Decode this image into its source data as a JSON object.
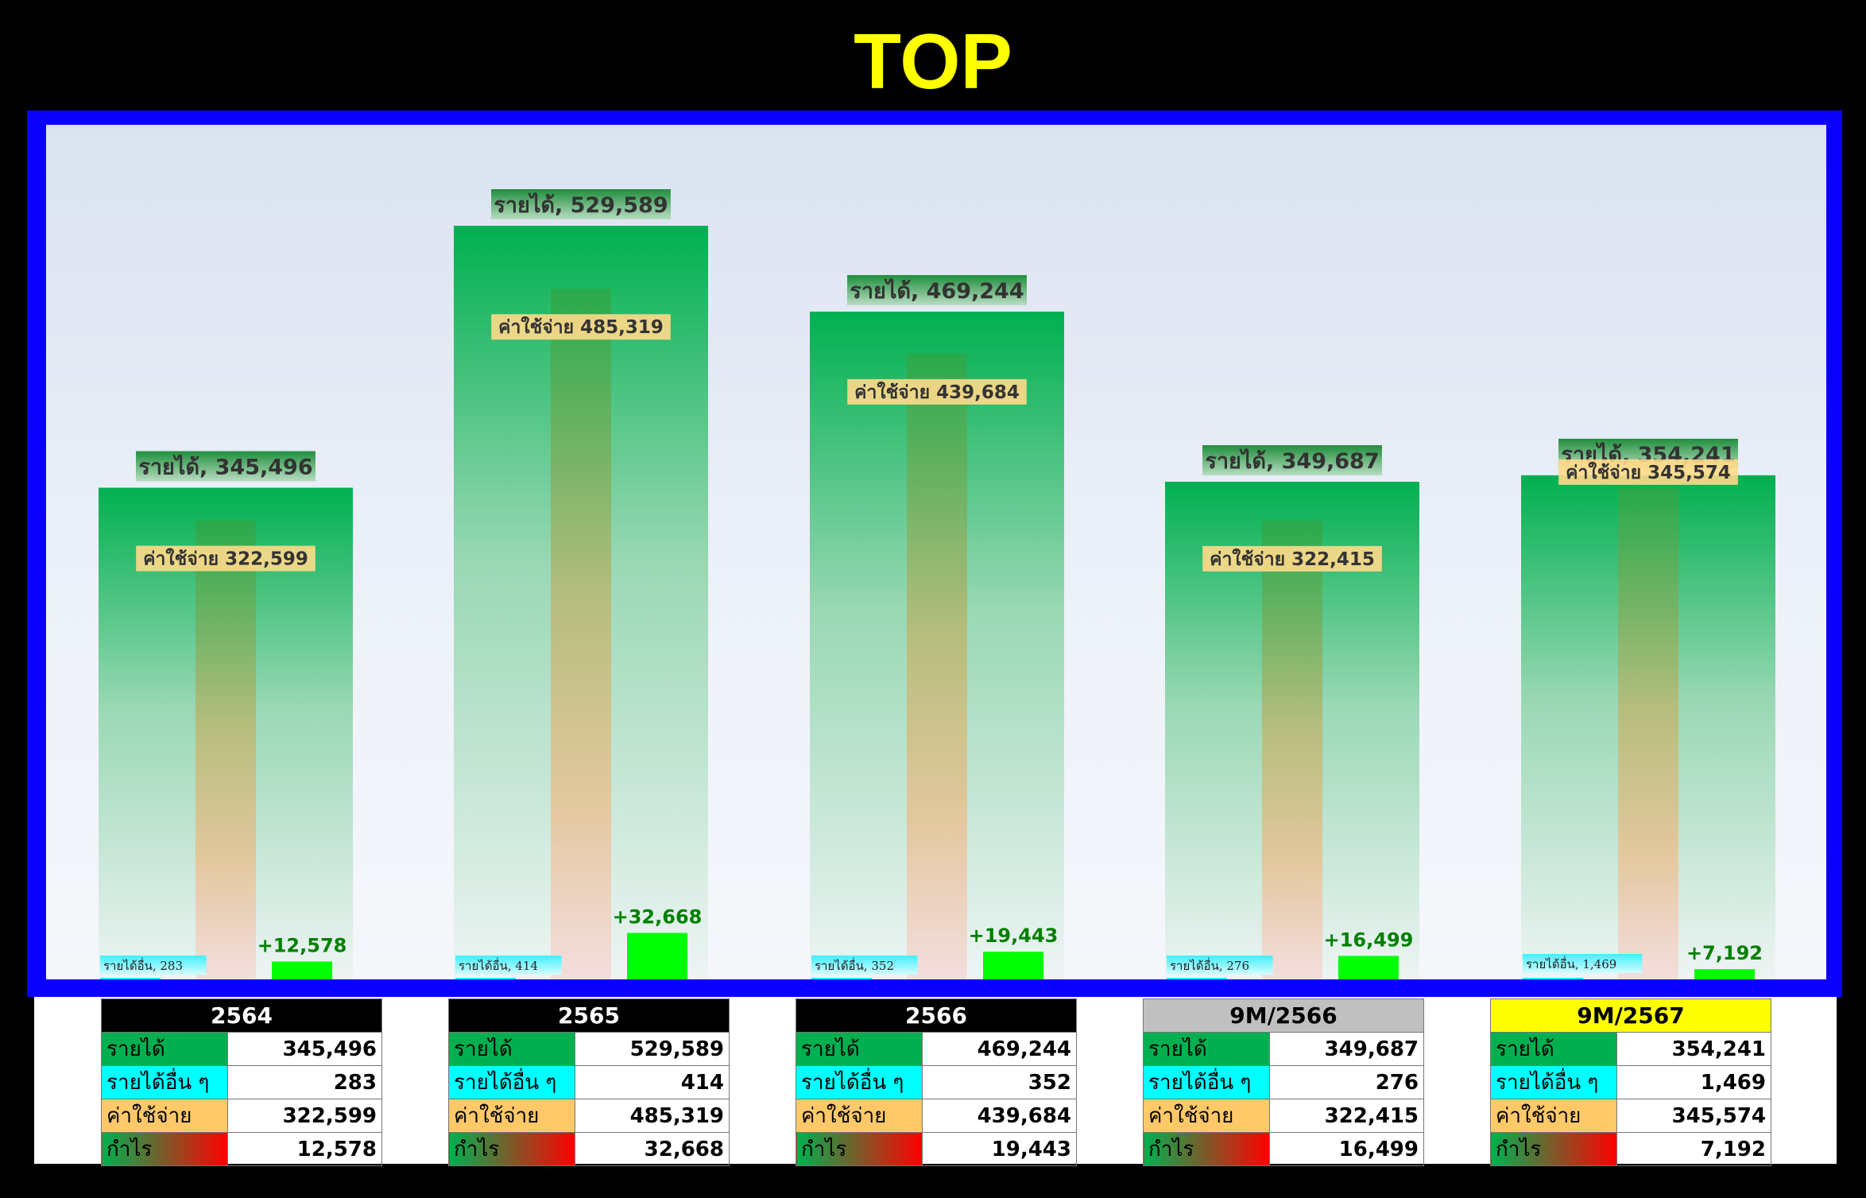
{
  "title": "TOP",
  "chart_data": {
    "type": "bar",
    "categories": [
      "2564",
      "2565",
      "2566",
      "9M/2566",
      "9M/2567"
    ],
    "series": [
      {
        "name": "รายได้",
        "values": [
          345496,
          529589,
          469244,
          349687,
          354241
        ]
      },
      {
        "name": "รายได้อื่น",
        "values": [
          283,
          414,
          352,
          276,
          1469
        ]
      },
      {
        "name": "ค่าใช้จ่าย",
        "values": [
          322599,
          485319,
          439684,
          322415,
          345574
        ]
      },
      {
        "name": "กำไร",
        "values": [
          12578,
          32668,
          19443,
          16499,
          7192
        ]
      }
    ],
    "data_labels": {
      "revenue": [
        "รายได้, 345,496",
        "รายได้, 529,589",
        "รายได้, 469,244",
        "รายได้, 349,687",
        "รายได้, 354,241"
      ],
      "other": [
        "รายได้อื่น, 283",
        "รายได้อื่น, 414",
        "รายได้อื่น, 352",
        "รายได้อื่น, 276",
        "รายได้อื่น, 1,469"
      ],
      "expense": [
        "ค่าใช้จ่าย 322,599",
        "ค่าใช้จ่าย 485,319",
        "ค่าใช้จ่าย 439,684",
        "ค่าใช้จ่าย 322,415",
        "ค่าใช้จ่าย 345,574"
      ],
      "profit": [
        "+12,578",
        "+32,668",
        "+19,443",
        "+16,499",
        "+7,192"
      ]
    },
    "ylim": [
      0,
      560000
    ],
    "grid": false,
    "legend": "none"
  },
  "colors": {
    "title": "#ffff00",
    "frame": "#0a00ff",
    "revenue": "#00b050",
    "other": "#00ffff",
    "expense": "#ffc869",
    "profit": "#00ff00",
    "profit_label": "#008000"
  },
  "table": {
    "row_labels": [
      "รายได้",
      "รายได้อื่น ๆ",
      "ค่าใช้จ่าย",
      "กำไร"
    ],
    "panels": [
      {
        "header": "2564",
        "header_bg": "#000000",
        "header_fg": "#ffffff",
        "values": [
          "345,496",
          "283",
          "322,599",
          "12,578"
        ]
      },
      {
        "header": "2565",
        "header_bg": "#000000",
        "header_fg": "#ffffff",
        "values": [
          "529,589",
          "414",
          "485,319",
          "32,668"
        ]
      },
      {
        "header": "2566",
        "header_bg": "#000000",
        "header_fg": "#ffffff",
        "values": [
          "469,244",
          "352",
          "439,684",
          "19,443"
        ]
      },
      {
        "header": "9M/2566",
        "header_bg": "#c0c0c0",
        "header_fg": "#000000",
        "values": [
          "349,687",
          "276",
          "322,415",
          "16,499"
        ]
      },
      {
        "header": "9M/2567",
        "header_bg": "#ffff00",
        "header_fg": "#000000",
        "values": [
          "354,241",
          "1,469",
          "345,574",
          "7,192"
        ]
      }
    ]
  }
}
